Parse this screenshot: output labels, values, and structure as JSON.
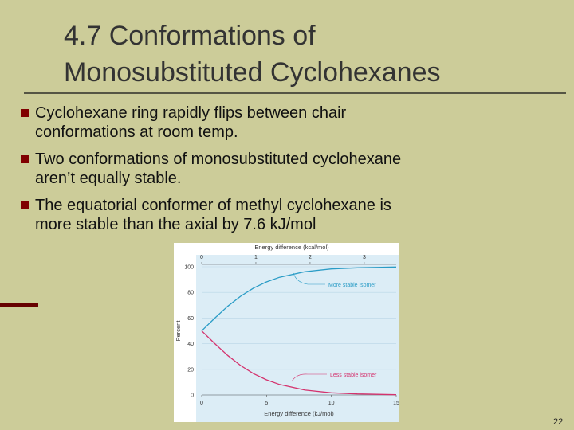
{
  "title": [
    "4.7 Conformations of",
    "Monosubstituted Cyclohexanes"
  ],
  "bullets": [
    [
      "Cyclohexane ring rapidly flips between chair",
      "conformations at room temp."
    ],
    [
      "Two conformations of monosubstituted cyclohexane",
      "aren’t equally stable."
    ],
    [
      "The equatorial conformer of methyl cyclohexane is",
      "more stable than the axial by 7.6 kJ/mol"
    ]
  ],
  "figure": {
    "chart_data": {
      "type": "line",
      "xlabel": "Energy difference (kJ/mol)",
      "x2label": "Energy difference (kcal/mol)",
      "ylabel": "Percent",
      "x": [
        0,
        1,
        2,
        3,
        4,
        5,
        6,
        8,
        10,
        12,
        15
      ],
      "series": [
        {
          "name": "More stable isomer",
          "color": "#2a9cc6",
          "values": [
            50,
            59.9,
            69.1,
            77,
            83.4,
            88.2,
            91.8,
            96.2,
            98.3,
            99.2,
            99.8
          ]
        },
        {
          "name": "Less stable isomer",
          "color": "#d4336e",
          "values": [
            50,
            40.1,
            30.9,
            23,
            16.6,
            11.8,
            8.2,
            3.8,
            1.7,
            0.8,
            0.2
          ]
        }
      ],
      "xlim": [
        0,
        15
      ],
      "xticks": [
        0,
        5,
        10,
        15
      ],
      "x2lim": [
        0,
        3.59
      ],
      "x2ticks": [
        0,
        1,
        2,
        3
      ],
      "ylim": [
        0,
        100
      ],
      "yticks": [
        0,
        20,
        40,
        60,
        80,
        100
      ]
    }
  },
  "page_number": "22"
}
